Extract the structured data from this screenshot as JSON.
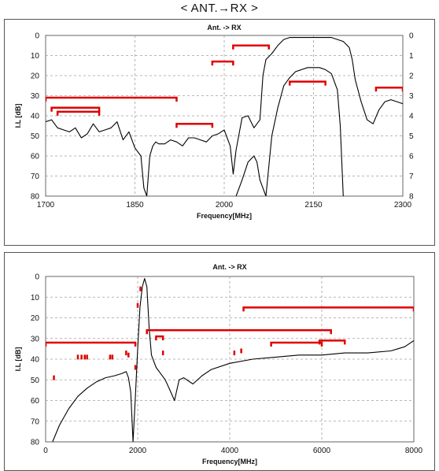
{
  "page_title": "< ANT.→RX >",
  "chart_data": [
    {
      "type": "line",
      "title": "Ant. -> RX",
      "xlabel": "Frequency[MHz]",
      "ylabel": "I.L [dB]",
      "xlim": [
        1700,
        2300
      ],
      "ylim": [
        0,
        80
      ],
      "y_inverted": true,
      "x_ticks": [
        1700,
        1850,
        2000,
        2150,
        2300
      ],
      "y_ticks": [
        0,
        10,
        20,
        30,
        40,
        50,
        60,
        70,
        80
      ],
      "y2_ticks": [
        0,
        1,
        2,
        3,
        4,
        5,
        6,
        7,
        8
      ],
      "grid": true,
      "series": [
        {
          "role": "wide-span",
          "color": "#000000",
          "x": [
            1700,
            1710,
            1720,
            1730,
            1740,
            1750,
            1760,
            1770,
            1780,
            1790,
            1800,
            1810,
            1820,
            1830,
            1840,
            1850,
            1860,
            1865,
            1870,
            1875,
            1880,
            1885,
            1890,
            1900,
            1910,
            1920,
            1930,
            1940,
            1950,
            1960,
            1970,
            1980,
            1990,
            2000,
            2010,
            2015,
            2020,
            2030,
            2040,
            2050,
            2060,
            2065,
            2070,
            2080,
            2090,
            2100,
            2110,
            2120,
            2130,
            2140,
            2150,
            2160,
            2170,
            2180,
            2190,
            2200,
            2210,
            2215,
            2220,
            2230,
            2240,
            2250,
            2260,
            2270,
            2280,
            2290,
            2300
          ],
          "y": [
            43,
            42,
            46,
            47,
            48,
            46,
            51,
            49,
            44,
            48,
            47,
            46,
            43,
            52,
            48,
            56,
            60,
            76,
            80,
            60,
            55,
            53,
            54,
            54,
            52,
            53,
            55,
            51,
            51,
            52,
            53,
            50,
            49,
            47,
            55,
            69,
            57,
            41,
            40,
            46,
            42,
            20,
            12,
            9,
            5,
            2,
            1,
            1,
            1,
            1,
            1,
            1,
            1,
            1,
            2,
            3,
            6,
            12,
            22,
            33,
            42,
            44,
            37,
            33,
            32,
            33,
            34
          ]
        },
        {
          "role": "narrow-span",
          "color": "#000000",
          "x": [
            2020,
            2030,
            2040,
            2050,
            2055,
            2060,
            2070,
            2080,
            2090,
            2100,
            2110,
            2120,
            2130,
            2140,
            2150,
            2160,
            2170,
            2180,
            2190,
            2195,
            2200
          ],
          "y": [
            80,
            72,
            63,
            60,
            63,
            72,
            80,
            50,
            36,
            25,
            21,
            18,
            17,
            16,
            16,
            16,
            17,
            19,
            27,
            45,
            80
          ]
        }
      ],
      "red_markers": [
        {
          "x": [
            1700,
            1920
          ],
          "y": 31
        },
        {
          "x": [
            1710,
            1790
          ],
          "y": 36
        },
        {
          "x": [
            1720,
            1790
          ],
          "y": 38
        },
        {
          "x": [
            1920,
            1980
          ],
          "y": 44
        },
        {
          "x": [
            1980,
            2015
          ],
          "y": 13
        },
        {
          "x": [
            2015,
            2075
          ],
          "y": 5
        },
        {
          "x": [
            2110,
            2170
          ],
          "y": 23
        },
        {
          "x": [
            2255,
            2300
          ],
          "y": 26
        }
      ]
    },
    {
      "type": "line",
      "title": "Ant. -> RX",
      "xlabel": "Frequency[MHz]",
      "ylabel": "I.L [dB]",
      "xlim": [
        0,
        8000
      ],
      "ylim": [
        0,
        80
      ],
      "y_inverted": true,
      "x_ticks": [
        0,
        2000,
        4000,
        6000,
        8000
      ],
      "y_ticks": [
        0,
        10,
        20,
        30,
        40,
        50,
        60,
        70,
        80
      ],
      "grid": true,
      "series": [
        {
          "role": "response",
          "color": "#000000",
          "x": [
            150,
            300,
            500,
            700,
            900,
            1100,
            1300,
            1500,
            1650,
            1750,
            1800,
            1850,
            1900,
            1950,
            2000,
            2050,
            2100,
            2150,
            2200,
            2250,
            2300,
            2400,
            2500,
            2600,
            2700,
            2800,
            2900,
            3000,
            3200,
            3400,
            3600,
            4000,
            4500,
            5000,
            5500,
            6000,
            6500,
            7000,
            7500,
            7800,
            8000
          ],
          "y": [
            80,
            72,
            64,
            58,
            54,
            51,
            49,
            48,
            47,
            46,
            49,
            56,
            80,
            58,
            35,
            15,
            5,
            1,
            5,
            25,
            38,
            44,
            47,
            50,
            55,
            60,
            50,
            49,
            52,
            48,
            45,
            42,
            40,
            39,
            38,
            38,
            37,
            37,
            36,
            34,
            31
          ]
        }
      ],
      "red_markers": [
        {
          "x": [
            0,
            1950
          ],
          "y": 32
        },
        {
          "x": [
            2200,
            6200
          ],
          "y": 26
        },
        {
          "x": [
            4300,
            8000
          ],
          "y": 15
        },
        {
          "x": [
            2400,
            2550
          ],
          "y": 29
        },
        {
          "x": [
            4900,
            6000
          ],
          "y": 32
        },
        {
          "x": [
            5950,
            6500
          ],
          "y": 31
        }
      ],
      "red_ticks": [
        {
          "x": 180,
          "y": 49
        },
        {
          "x": 700,
          "y": 39
        },
        {
          "x": 780,
          "y": 39
        },
        {
          "x": 850,
          "y": 39
        },
        {
          "x": 900,
          "y": 39
        },
        {
          "x": 1400,
          "y": 39
        },
        {
          "x": 1450,
          "y": 39
        },
        {
          "x": 1750,
          "y": 37
        },
        {
          "x": 1800,
          "y": 38
        },
        {
          "x": 1950,
          "y": 44
        },
        {
          "x": 2000,
          "y": 14
        },
        {
          "x": 2060,
          "y": 6
        },
        {
          "x": 2550,
          "y": 37
        },
        {
          "x": 4100,
          "y": 37
        },
        {
          "x": 4250,
          "y": 36
        }
      ]
    }
  ]
}
